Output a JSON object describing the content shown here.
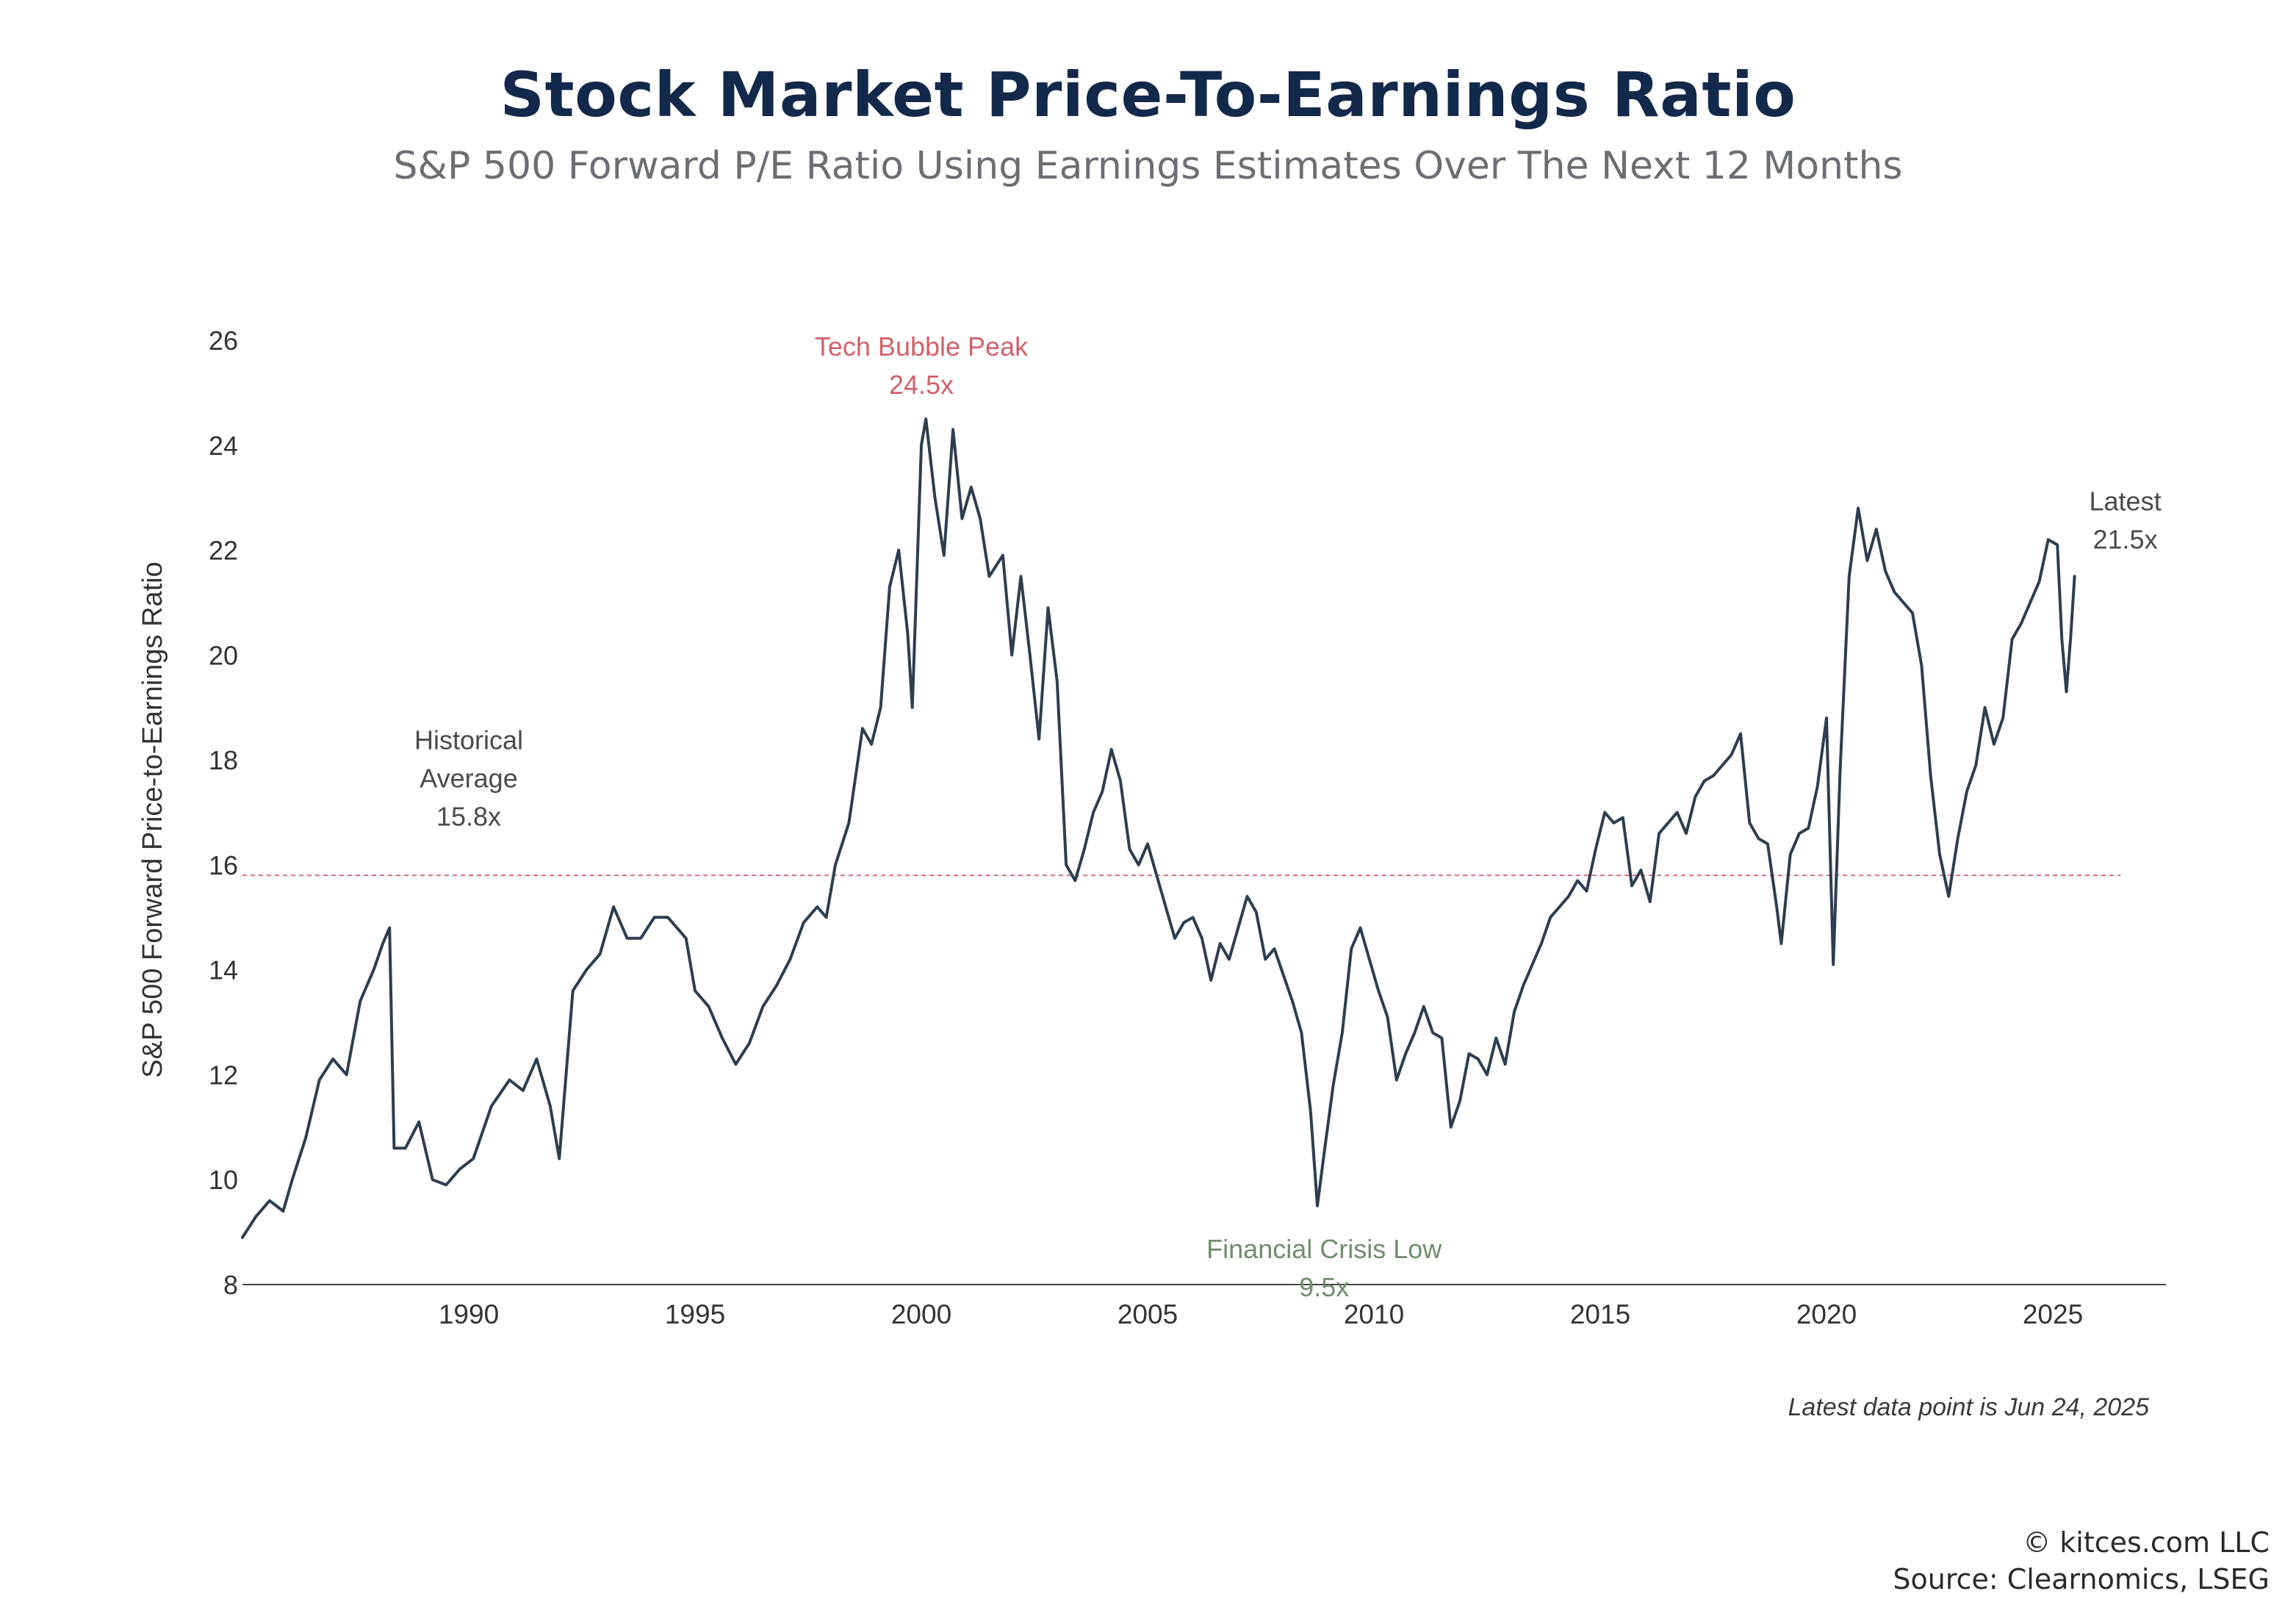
{
  "chart_data": {
    "type": "line",
    "title": "Stock Market Price-To-Earnings Ratio",
    "subtitle": "S&P 500 Forward P/E Ratio Using Earnings Estimates Over The Next 12 Months",
    "ylabel": "S&P 500 Forward Price-to-Earnings Ratio",
    "xlabel": "",
    "ylim": [
      8,
      26
    ],
    "xlim": [
      1985.0,
      2027.5
    ],
    "y_ticks": [
      8,
      10,
      12,
      14,
      16,
      18,
      20,
      22,
      24,
      26
    ],
    "x_ticks": [
      1990,
      1995,
      2000,
      2005,
      2010,
      2015,
      2020,
      2025
    ],
    "grid": false,
    "reference_line": {
      "value": 15.8,
      "color": "#d9707a"
    },
    "series": [
      {
        "color": "#2e3e50",
        "points": [
          [
            1985.0,
            8.9
          ],
          [
            1985.3,
            9.3
          ],
          [
            1985.6,
            9.6
          ],
          [
            1985.9,
            9.4
          ],
          [
            1986.1,
            10.0
          ],
          [
            1986.4,
            10.8
          ],
          [
            1986.7,
            11.9
          ],
          [
            1987.0,
            12.3
          ],
          [
            1987.3,
            12.0
          ],
          [
            1987.6,
            13.4
          ],
          [
            1987.9,
            14.0
          ],
          [
            1988.1,
            14.5
          ],
          [
            1988.25,
            14.8
          ],
          [
            1988.35,
            10.6
          ],
          [
            1988.6,
            10.6
          ],
          [
            1988.9,
            11.1
          ],
          [
            1989.2,
            10.0
          ],
          [
            1989.5,
            9.9
          ],
          [
            1989.8,
            10.2
          ],
          [
            1990.1,
            10.4
          ],
          [
            1990.5,
            11.4
          ],
          [
            1990.9,
            11.9
          ],
          [
            1991.2,
            11.7
          ],
          [
            1991.5,
            12.3
          ],
          [
            1991.8,
            11.4
          ],
          [
            1992.0,
            10.4
          ],
          [
            1992.3,
            13.6
          ],
          [
            1992.6,
            14.0
          ],
          [
            1992.9,
            14.3
          ],
          [
            1993.2,
            15.2
          ],
          [
            1993.5,
            14.6
          ],
          [
            1993.8,
            14.6
          ],
          [
            1994.1,
            15.0
          ],
          [
            1994.4,
            15.0
          ],
          [
            1994.8,
            14.6
          ],
          [
            1995.0,
            13.6
          ],
          [
            1995.3,
            13.3
          ],
          [
            1995.6,
            12.7
          ],
          [
            1995.9,
            12.2
          ],
          [
            1996.2,
            12.6
          ],
          [
            1996.5,
            13.3
          ],
          [
            1996.8,
            13.7
          ],
          [
            1997.1,
            14.2
          ],
          [
            1997.4,
            14.9
          ],
          [
            1997.7,
            15.2
          ],
          [
            1997.9,
            15.0
          ],
          [
            1998.1,
            16.0
          ],
          [
            1998.4,
            16.8
          ],
          [
            1998.7,
            18.6
          ],
          [
            1998.9,
            18.3
          ],
          [
            1999.1,
            19.0
          ],
          [
            1999.3,
            21.3
          ],
          [
            1999.5,
            22.0
          ],
          [
            1999.7,
            20.4
          ],
          [
            1999.8,
            19.0
          ],
          [
            2000.0,
            24.0
          ],
          [
            2000.1,
            24.5
          ],
          [
            2000.3,
            23.0
          ],
          [
            2000.5,
            21.9
          ],
          [
            2000.7,
            24.3
          ],
          [
            2000.9,
            22.6
          ],
          [
            2001.1,
            23.2
          ],
          [
            2001.3,
            22.6
          ],
          [
            2001.5,
            21.5
          ],
          [
            2001.8,
            21.9
          ],
          [
            2002.0,
            20.0
          ],
          [
            2002.2,
            21.5
          ],
          [
            2002.4,
            20.0
          ],
          [
            2002.6,
            18.4
          ],
          [
            2002.8,
            20.9
          ],
          [
            2003.0,
            19.5
          ],
          [
            2003.2,
            16.0
          ],
          [
            2003.4,
            15.7
          ],
          [
            2003.6,
            16.3
          ],
          [
            2003.8,
            17.0
          ],
          [
            2004.0,
            17.4
          ],
          [
            2004.2,
            18.2
          ],
          [
            2004.4,
            17.6
          ],
          [
            2004.6,
            16.3
          ],
          [
            2004.8,
            16.0
          ],
          [
            2005.0,
            16.4
          ],
          [
            2005.2,
            15.8
          ],
          [
            2005.4,
            15.2
          ],
          [
            2005.6,
            14.6
          ],
          [
            2005.8,
            14.9
          ],
          [
            2006.0,
            15.0
          ],
          [
            2006.2,
            14.6
          ],
          [
            2006.4,
            13.8
          ],
          [
            2006.6,
            14.5
          ],
          [
            2006.8,
            14.2
          ],
          [
            2007.0,
            14.8
          ],
          [
            2007.2,
            15.4
          ],
          [
            2007.4,
            15.1
          ],
          [
            2007.6,
            14.2
          ],
          [
            2007.8,
            14.4
          ],
          [
            2008.0,
            13.9
          ],
          [
            2008.2,
            13.4
          ],
          [
            2008.4,
            12.8
          ],
          [
            2008.6,
            11.3
          ],
          [
            2008.75,
            9.5
          ],
          [
            2008.9,
            10.5
          ],
          [
            2009.1,
            11.8
          ],
          [
            2009.3,
            12.8
          ],
          [
            2009.5,
            14.4
          ],
          [
            2009.7,
            14.8
          ],
          [
            2009.9,
            14.2
          ],
          [
            2010.1,
            13.6
          ],
          [
            2010.3,
            13.1
          ],
          [
            2010.5,
            11.9
          ],
          [
            2010.7,
            12.4
          ],
          [
            2010.9,
            12.8
          ],
          [
            2011.1,
            13.3
          ],
          [
            2011.3,
            12.8
          ],
          [
            2011.5,
            12.7
          ],
          [
            2011.7,
            11.0
          ],
          [
            2011.9,
            11.5
          ],
          [
            2012.1,
            12.4
          ],
          [
            2012.3,
            12.3
          ],
          [
            2012.5,
            12.0
          ],
          [
            2012.7,
            12.7
          ],
          [
            2012.9,
            12.2
          ],
          [
            2013.1,
            13.2
          ],
          [
            2013.3,
            13.7
          ],
          [
            2013.5,
            14.1
          ],
          [
            2013.7,
            14.5
          ],
          [
            2013.9,
            15.0
          ],
          [
            2014.1,
            15.2
          ],
          [
            2014.3,
            15.4
          ],
          [
            2014.5,
            15.7
          ],
          [
            2014.7,
            15.5
          ],
          [
            2014.9,
            16.3
          ],
          [
            2015.1,
            17.0
          ],
          [
            2015.3,
            16.8
          ],
          [
            2015.5,
            16.9
          ],
          [
            2015.7,
            15.6
          ],
          [
            2015.9,
            15.9
          ],
          [
            2016.1,
            15.3
          ],
          [
            2016.3,
            16.6
          ],
          [
            2016.5,
            16.8
          ],
          [
            2016.7,
            17.0
          ],
          [
            2016.9,
            16.6
          ],
          [
            2017.1,
            17.3
          ],
          [
            2017.3,
            17.6
          ],
          [
            2017.5,
            17.7
          ],
          [
            2017.7,
            17.9
          ],
          [
            2017.9,
            18.1
          ],
          [
            2018.1,
            18.5
          ],
          [
            2018.3,
            16.8
          ],
          [
            2018.5,
            16.5
          ],
          [
            2018.7,
            16.4
          ],
          [
            2018.9,
            15.2
          ],
          [
            2019.0,
            14.5
          ],
          [
            2019.2,
            16.2
          ],
          [
            2019.4,
            16.6
          ],
          [
            2019.6,
            16.7
          ],
          [
            2019.8,
            17.5
          ],
          [
            2020.0,
            18.8
          ],
          [
            2020.15,
            14.1
          ],
          [
            2020.3,
            17.8
          ],
          [
            2020.5,
            21.5
          ],
          [
            2020.7,
            22.8
          ],
          [
            2020.9,
            21.8
          ],
          [
            2021.1,
            22.4
          ],
          [
            2021.3,
            21.6
          ],
          [
            2021.5,
            21.2
          ],
          [
            2021.7,
            21.0
          ],
          [
            2021.9,
            20.8
          ],
          [
            2022.1,
            19.8
          ],
          [
            2022.3,
            17.7
          ],
          [
            2022.5,
            16.2
          ],
          [
            2022.7,
            15.4
          ],
          [
            2022.9,
            16.5
          ],
          [
            2023.1,
            17.4
          ],
          [
            2023.3,
            17.9
          ],
          [
            2023.5,
            19.0
          ],
          [
            2023.7,
            18.3
          ],
          [
            2023.9,
            18.8
          ],
          [
            2024.1,
            20.3
          ],
          [
            2024.3,
            20.6
          ],
          [
            2024.5,
            21.0
          ],
          [
            2024.7,
            21.4
          ],
          [
            2024.9,
            22.2
          ],
          [
            2025.1,
            22.1
          ],
          [
            2025.2,
            20.3
          ],
          [
            2025.3,
            19.3
          ],
          [
            2025.4,
            20.4
          ],
          [
            2025.48,
            21.5
          ]
        ]
      }
    ],
    "annotations": [
      {
        "id": "tech",
        "lines": [
          "Tech Bubble Peak",
          "24.5x"
        ],
        "color": "#d2616a",
        "x": 2000.0,
        "y": 25.9,
        "align": "middle"
      },
      {
        "id": "hist",
        "lines": [
          "Historical",
          "Average",
          "15.8x"
        ],
        "color": "#4a4a4a",
        "x": 1990.0,
        "y": 18.4,
        "align": "middle"
      },
      {
        "id": "fin",
        "lines": [
          "Financial Crisis Low",
          "9.5x"
        ],
        "color": "#6e8e6a",
        "x": 2008.9,
        "y": 8.7,
        "align": "middle"
      },
      {
        "id": "latest",
        "lines": [
          "Latest",
          "21.5x"
        ],
        "color": "#4a4a4a",
        "x": 2026.6,
        "y": 22.95,
        "align": "middle"
      }
    ]
  },
  "footnote": "Latest data point is Jun 24, 2025",
  "footer": {
    "copyright": "© kitces.com LLC",
    "source": "Source: Clearnomics, LSEG"
  }
}
